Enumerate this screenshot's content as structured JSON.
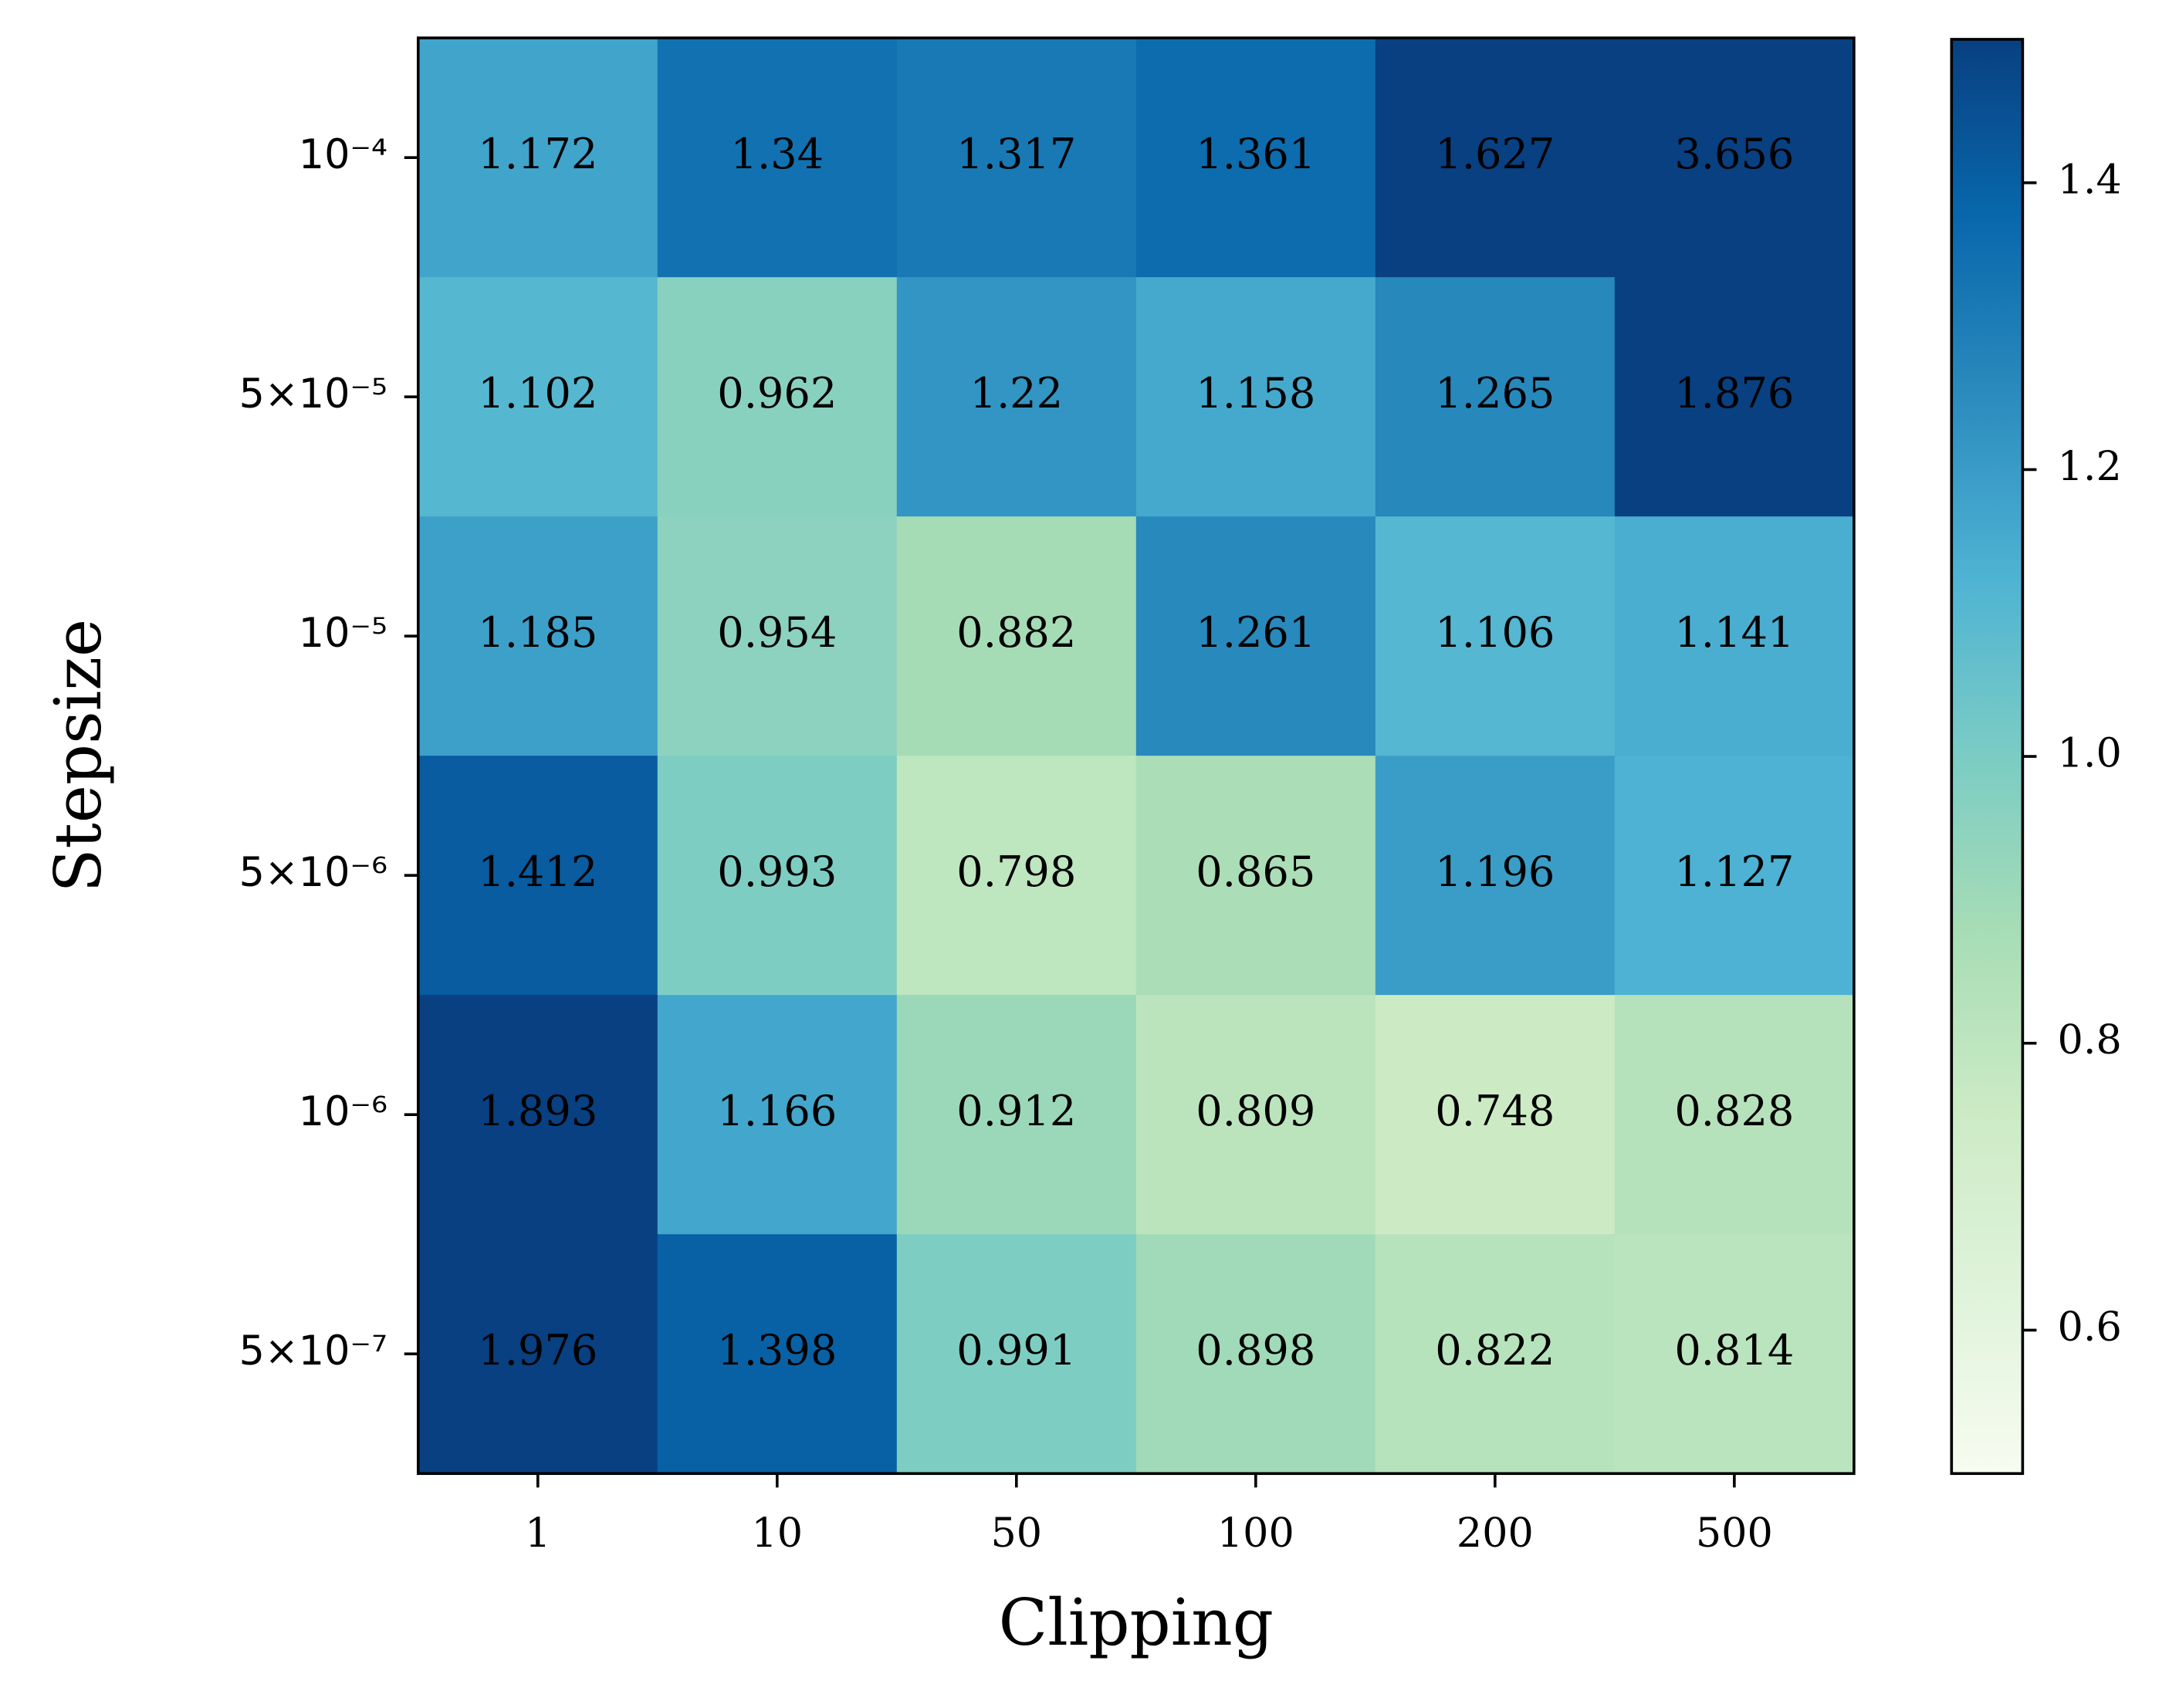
{
  "chart_data": {
    "type": "heatmap",
    "x_label": "Clipping",
    "y_label": "Stepsize",
    "x_categories": [
      "1",
      "10",
      "50",
      "100",
      "200",
      "500"
    ],
    "y_categories": [
      "10⁻⁴",
      "5×10⁻⁵",
      "10⁻⁵",
      "5×10⁻⁶",
      "10⁻⁶",
      "5×10⁻⁷"
    ],
    "values": [
      [
        1.172,
        1.34,
        1.317,
        1.361,
        1.627,
        3.656
      ],
      [
        1.102,
        0.962,
        1.22,
        1.158,
        1.265,
        1.876
      ],
      [
        1.185,
        0.954,
        0.882,
        1.261,
        1.106,
        1.141
      ],
      [
        1.412,
        0.993,
        0.798,
        0.865,
        1.196,
        1.127
      ],
      [
        1.893,
        1.166,
        0.912,
        0.809,
        0.748,
        0.828
      ],
      [
        1.976,
        1.398,
        0.991,
        0.898,
        0.822,
        0.814
      ]
    ],
    "colormap": "GnBu_r",
    "clim": [
      0.5,
      1.5
    ],
    "cticks": [
      0.6,
      0.8,
      {
        "value": 1,
        "label": "1.0"
      },
      1.2,
      1.4
    ],
    "value_label_color": "#191970"
  }
}
